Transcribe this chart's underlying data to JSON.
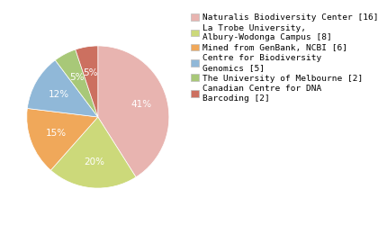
{
  "labels": [
    "Naturalis Biodiversity Center [16]",
    "La Trobe University,\nAlbury-Wodonga Campus [8]",
    "Mined from GenBank, NCBI [6]",
    "Centre for Biodiversity\nGenomics [5]",
    "The University of Melbourne [2]",
    "Canadian Centre for DNA\nBarcoding [2]"
  ],
  "values": [
    16,
    8,
    6,
    5,
    2,
    2
  ],
  "colors": [
    "#e8b4b0",
    "#ccd97a",
    "#f0a85a",
    "#90b8d8",
    "#a8c878",
    "#cc7060"
  ],
  "pct_labels": [
    "41%",
    "20%",
    "15%",
    "12%",
    "5%",
    "5%"
  ],
  "startangle": 90,
  "legend_fontsize": 6.8,
  "pct_fontsize": 7.5,
  "pct_color": "white"
}
